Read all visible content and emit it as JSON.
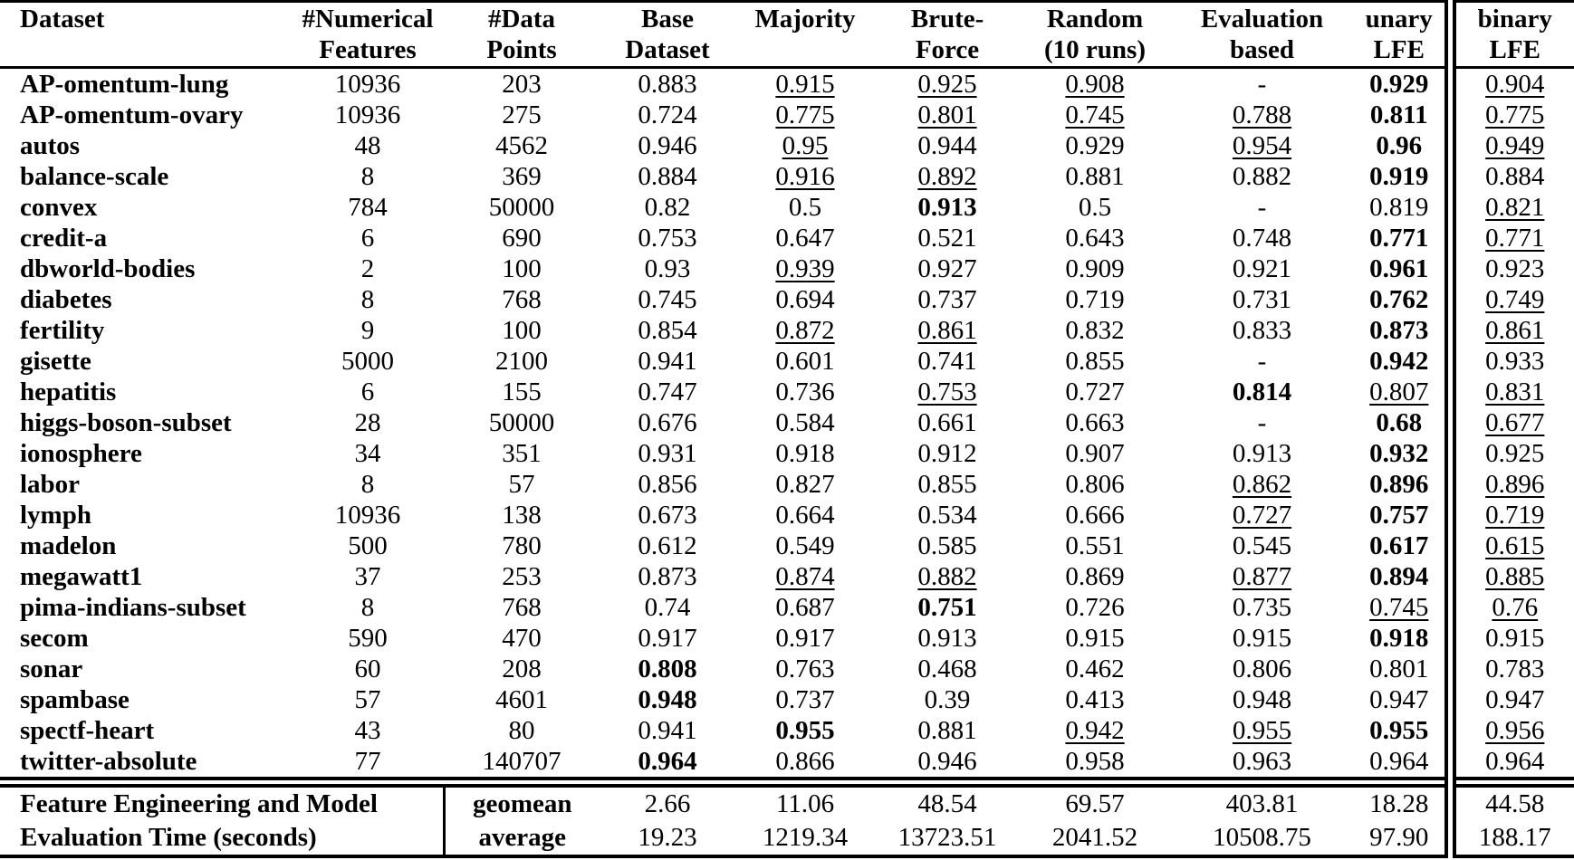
{
  "colors": {
    "text": "#000000",
    "background": "#ffffff",
    "rule": "#000000"
  },
  "table": {
    "columns": [
      {
        "line1": "Dataset",
        "line2": ""
      },
      {
        "line1": "#Numerical",
        "line2": "Features"
      },
      {
        "line1": "#Data",
        "line2": "Points"
      },
      {
        "line1": "Base",
        "line2": "Dataset"
      },
      {
        "line1": "Majority",
        "line2": ""
      },
      {
        "line1": "Brute-",
        "line2": "Force"
      },
      {
        "line1": "Random",
        "line2": "(10 runs)"
      },
      {
        "line1": "Evaluation",
        "line2": "based"
      },
      {
        "line1": "unary",
        "line2": "LFE"
      },
      {
        "line1": "binary",
        "line2": "LFE"
      }
    ],
    "rows": [
      {
        "dataset": "AP-omentum-lung",
        "num_features": "10936",
        "data_points": "203",
        "cells": [
          {
            "v": "0.883",
            "f": "p"
          },
          {
            "v": "0.915",
            "f": "u"
          },
          {
            "v": "0.925",
            "f": "u"
          },
          {
            "v": "0.908",
            "f": "u"
          },
          {
            "v": "-",
            "f": "p"
          },
          {
            "v": "0.929",
            "f": "b"
          },
          {
            "v": "0.904",
            "f": "u"
          }
        ]
      },
      {
        "dataset": "AP-omentum-ovary",
        "num_features": "10936",
        "data_points": "275",
        "cells": [
          {
            "v": "0.724",
            "f": "p"
          },
          {
            "v": "0.775",
            "f": "u"
          },
          {
            "v": "0.801",
            "f": "u"
          },
          {
            "v": "0.745",
            "f": "u"
          },
          {
            "v": "0.788",
            "f": "u"
          },
          {
            "v": "0.811",
            "f": "b"
          },
          {
            "v": "0.775",
            "f": "u"
          }
        ]
      },
      {
        "dataset": "autos",
        "num_features": "48",
        "data_points": "4562",
        "cells": [
          {
            "v": "0.946",
            "f": "p"
          },
          {
            "v": "0.95",
            "f": "u"
          },
          {
            "v": "0.944",
            "f": "p"
          },
          {
            "v": "0.929",
            "f": "p"
          },
          {
            "v": "0.954",
            "f": "u"
          },
          {
            "v": "0.96",
            "f": "b"
          },
          {
            "v": "0.949",
            "f": "u"
          }
        ]
      },
      {
        "dataset": "balance-scale",
        "num_features": "8",
        "data_points": "369",
        "cells": [
          {
            "v": "0.884",
            "f": "p"
          },
          {
            "v": "0.916",
            "f": "u"
          },
          {
            "v": "0.892",
            "f": "u"
          },
          {
            "v": "0.881",
            "f": "p"
          },
          {
            "v": "0.882",
            "f": "p"
          },
          {
            "v": "0.919",
            "f": "b"
          },
          {
            "v": "0.884",
            "f": "p"
          }
        ]
      },
      {
        "dataset": "convex",
        "num_features": "784",
        "data_points": "50000",
        "cells": [
          {
            "v": "0.82",
            "f": "p"
          },
          {
            "v": "0.5",
            "f": "p"
          },
          {
            "v": "0.913",
            "f": "b"
          },
          {
            "v": "0.5",
            "f": "p"
          },
          {
            "v": "-",
            "f": "p"
          },
          {
            "v": "0.819",
            "f": "p"
          },
          {
            "v": "0.821",
            "f": "u"
          }
        ]
      },
      {
        "dataset": "credit-a",
        "num_features": "6",
        "data_points": "690",
        "cells": [
          {
            "v": "0.753",
            "f": "p"
          },
          {
            "v": "0.647",
            "f": "p"
          },
          {
            "v": "0.521",
            "f": "p"
          },
          {
            "v": "0.643",
            "f": "p"
          },
          {
            "v": "0.748",
            "f": "p"
          },
          {
            "v": "0.771",
            "f": "b"
          },
          {
            "v": "0.771",
            "f": "u"
          }
        ]
      },
      {
        "dataset": "dbworld-bodies",
        "num_features": "2",
        "data_points": "100",
        "cells": [
          {
            "v": "0.93",
            "f": "p"
          },
          {
            "v": "0.939",
            "f": "u"
          },
          {
            "v": "0.927",
            "f": "p"
          },
          {
            "v": "0.909",
            "f": "p"
          },
          {
            "v": "0.921",
            "f": "p"
          },
          {
            "v": "0.961",
            "f": "b"
          },
          {
            "v": "0.923",
            "f": "p"
          }
        ]
      },
      {
        "dataset": "diabetes",
        "num_features": "8",
        "data_points": "768",
        "cells": [
          {
            "v": "0.745",
            "f": "p"
          },
          {
            "v": "0.694",
            "f": "p"
          },
          {
            "v": "0.737",
            "f": "p"
          },
          {
            "v": "0.719",
            "f": "p"
          },
          {
            "v": "0.731",
            "f": "p"
          },
          {
            "v": "0.762",
            "f": "b"
          },
          {
            "v": "0.749",
            "f": "u"
          }
        ]
      },
      {
        "dataset": "fertility",
        "num_features": "9",
        "data_points": "100",
        "cells": [
          {
            "v": "0.854",
            "f": "p"
          },
          {
            "v": "0.872",
            "f": "u"
          },
          {
            "v": "0.861",
            "f": "u"
          },
          {
            "v": "0.832",
            "f": "p"
          },
          {
            "v": "0.833",
            "f": "p"
          },
          {
            "v": "0.873",
            "f": "b"
          },
          {
            "v": "0.861",
            "f": "u"
          }
        ]
      },
      {
        "dataset": "gisette",
        "num_features": "5000",
        "data_points": "2100",
        "cells": [
          {
            "v": "0.941",
            "f": "p"
          },
          {
            "v": "0.601",
            "f": "p"
          },
          {
            "v": "0.741",
            "f": "p"
          },
          {
            "v": "0.855",
            "f": "p"
          },
          {
            "v": "-",
            "f": "p"
          },
          {
            "v": "0.942",
            "f": "b"
          },
          {
            "v": "0.933",
            "f": "p"
          }
        ]
      },
      {
        "dataset": "hepatitis",
        "num_features": "6",
        "data_points": "155",
        "cells": [
          {
            "v": "0.747",
            "f": "p"
          },
          {
            "v": "0.736",
            "f": "p"
          },
          {
            "v": "0.753",
            "f": "u"
          },
          {
            "v": "0.727",
            "f": "p"
          },
          {
            "v": "0.814",
            "f": "b"
          },
          {
            "v": "0.807",
            "f": "u"
          },
          {
            "v": "0.831",
            "f": "u"
          }
        ]
      },
      {
        "dataset": "higgs-boson-subset",
        "num_features": "28",
        "data_points": "50000",
        "cells": [
          {
            "v": "0.676",
            "f": "p"
          },
          {
            "v": "0.584",
            "f": "p"
          },
          {
            "v": "0.661",
            "f": "p"
          },
          {
            "v": "0.663",
            "f": "p"
          },
          {
            "v": "-",
            "f": "p"
          },
          {
            "v": "0.68",
            "f": "b"
          },
          {
            "v": "0.677",
            "f": "u"
          }
        ]
      },
      {
        "dataset": "ionosphere",
        "num_features": "34",
        "data_points": "351",
        "cells": [
          {
            "v": "0.931",
            "f": "p"
          },
          {
            "v": "0.918",
            "f": "p"
          },
          {
            "v": "0.912",
            "f": "p"
          },
          {
            "v": "0.907",
            "f": "p"
          },
          {
            "v": "0.913",
            "f": "p"
          },
          {
            "v": "0.932",
            "f": "b"
          },
          {
            "v": "0.925",
            "f": "p"
          }
        ]
      },
      {
        "dataset": "labor",
        "num_features": "8",
        "data_points": "57",
        "cells": [
          {
            "v": "0.856",
            "f": "p"
          },
          {
            "v": "0.827",
            "f": "p"
          },
          {
            "v": "0.855",
            "f": "p"
          },
          {
            "v": "0.806",
            "f": "p"
          },
          {
            "v": "0.862",
            "f": "u"
          },
          {
            "v": "0.896",
            "f": "b"
          },
          {
            "v": "0.896",
            "f": "u"
          }
        ]
      },
      {
        "dataset": "lymph",
        "num_features": "10936",
        "data_points": "138",
        "cells": [
          {
            "v": "0.673",
            "f": "p"
          },
          {
            "v": "0.664",
            "f": "p"
          },
          {
            "v": "0.534",
            "f": "p"
          },
          {
            "v": "0.666",
            "f": "p"
          },
          {
            "v": "0.727",
            "f": "u"
          },
          {
            "v": "0.757",
            "f": "b"
          },
          {
            "v": "0.719",
            "f": "u"
          }
        ]
      },
      {
        "dataset": "madelon",
        "num_features": "500",
        "data_points": "780",
        "cells": [
          {
            "v": "0.612",
            "f": "p"
          },
          {
            "v": "0.549",
            "f": "p"
          },
          {
            "v": "0.585",
            "f": "p"
          },
          {
            "v": "0.551",
            "f": "p"
          },
          {
            "v": "0.545",
            "f": "p"
          },
          {
            "v": "0.617",
            "f": "b"
          },
          {
            "v": "0.615",
            "f": "u"
          }
        ]
      },
      {
        "dataset": "megawatt1",
        "num_features": "37",
        "data_points": "253",
        "cells": [
          {
            "v": "0.873",
            "f": "p"
          },
          {
            "v": "0.874",
            "f": "u"
          },
          {
            "v": "0.882",
            "f": "u"
          },
          {
            "v": "0.869",
            "f": "p"
          },
          {
            "v": "0.877",
            "f": "u"
          },
          {
            "v": "0.894",
            "f": "b"
          },
          {
            "v": "0.885",
            "f": "u"
          }
        ]
      },
      {
        "dataset": "pima-indians-subset",
        "num_features": "8",
        "data_points": "768",
        "cells": [
          {
            "v": "0.74",
            "f": "p"
          },
          {
            "v": "0.687",
            "f": "p"
          },
          {
            "v": "0.751",
            "f": "b"
          },
          {
            "v": "0.726",
            "f": "p"
          },
          {
            "v": "0.735",
            "f": "p"
          },
          {
            "v": "0.745",
            "f": "u"
          },
          {
            "v": "0.76",
            "f": "u"
          }
        ]
      },
      {
        "dataset": "secom",
        "num_features": "590",
        "data_points": "470",
        "cells": [
          {
            "v": "0.917",
            "f": "p"
          },
          {
            "v": "0.917",
            "f": "p"
          },
          {
            "v": "0.913",
            "f": "p"
          },
          {
            "v": "0.915",
            "f": "p"
          },
          {
            "v": "0.915",
            "f": "p"
          },
          {
            "v": "0.918",
            "f": "b"
          },
          {
            "v": "0.915",
            "f": "p"
          }
        ]
      },
      {
        "dataset": "sonar",
        "num_features": "60",
        "data_points": "208",
        "cells": [
          {
            "v": "0.808",
            "f": "b"
          },
          {
            "v": "0.763",
            "f": "p"
          },
          {
            "v": "0.468",
            "f": "p"
          },
          {
            "v": "0.462",
            "f": "p"
          },
          {
            "v": "0.806",
            "f": "p"
          },
          {
            "v": "0.801",
            "f": "p"
          },
          {
            "v": "0.783",
            "f": "p"
          }
        ]
      },
      {
        "dataset": "spambase",
        "num_features": "57",
        "data_points": "4601",
        "cells": [
          {
            "v": "0.948",
            "f": "b"
          },
          {
            "v": "0.737",
            "f": "p"
          },
          {
            "v": "0.39",
            "f": "p"
          },
          {
            "v": "0.413",
            "f": "p"
          },
          {
            "v": "0.948",
            "f": "p"
          },
          {
            "v": "0.947",
            "f": "p"
          },
          {
            "v": "0.947",
            "f": "p"
          }
        ]
      },
      {
        "dataset": "spectf-heart",
        "num_features": "43",
        "data_points": "80",
        "cells": [
          {
            "v": "0.941",
            "f": "p"
          },
          {
            "v": "0.955",
            "f": "b"
          },
          {
            "v": "0.881",
            "f": "p"
          },
          {
            "v": "0.942",
            "f": "u"
          },
          {
            "v": "0.955",
            "f": "u"
          },
          {
            "v": "0.955",
            "f": "b"
          },
          {
            "v": "0.956",
            "f": "u"
          }
        ]
      },
      {
        "dataset": "twitter-absolute",
        "num_features": "77",
        "data_points": "140707",
        "cells": [
          {
            "v": "0.964",
            "f": "b"
          },
          {
            "v": "0.866",
            "f": "p"
          },
          {
            "v": "0.946",
            "f": "p"
          },
          {
            "v": "0.958",
            "f": "p"
          },
          {
            "v": "0.963",
            "f": "p"
          },
          {
            "v": "0.964",
            "f": "p"
          },
          {
            "v": "0.964",
            "f": "p"
          }
        ]
      }
    ],
    "footer": {
      "label_line1": "Feature Engineering and Model",
      "label_line2": "Evaluation Time (seconds)",
      "rows": [
        {
          "stat": "geomean",
          "values": [
            "2.66",
            "11.06",
            "48.54",
            "69.57",
            "403.81",
            "18.28",
            "44.58"
          ]
        },
        {
          "stat": "average",
          "values": [
            "19.23",
            "1219.34",
            "13723.51",
            "2041.52",
            "10508.75",
            "97.90",
            "188.17"
          ]
        }
      ]
    }
  }
}
